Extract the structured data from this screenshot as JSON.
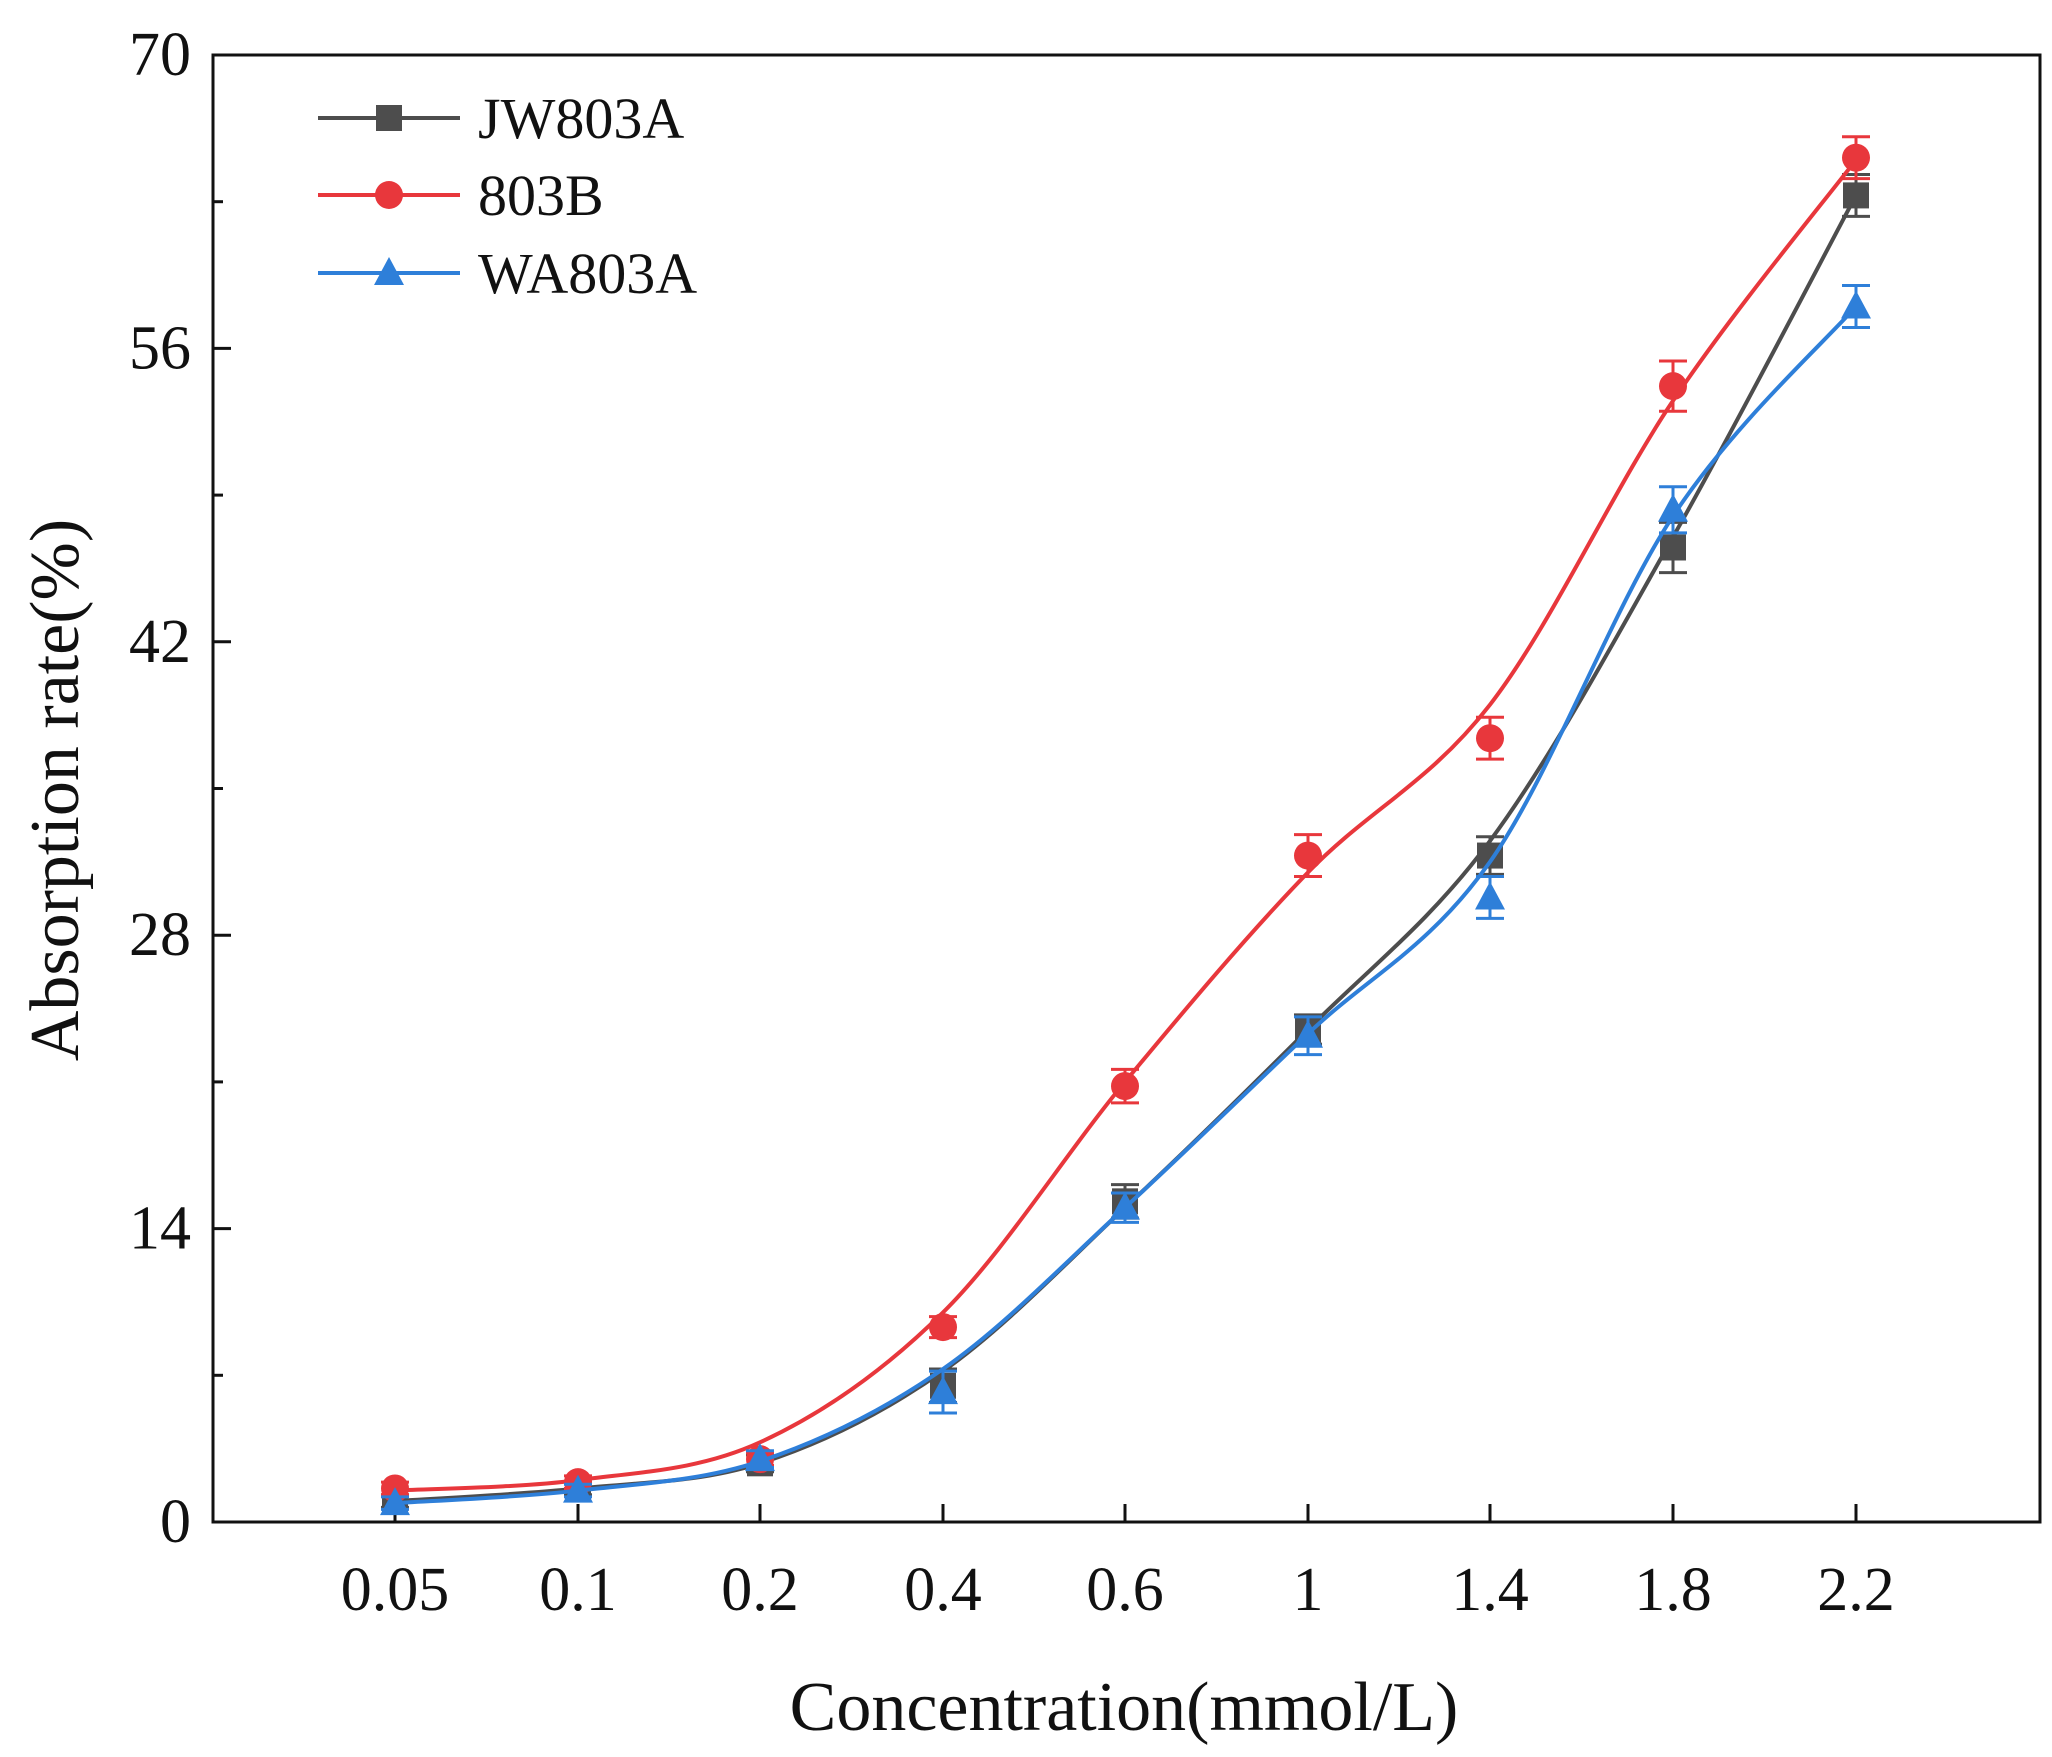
{
  "chart_data": {
    "type": "line",
    "title": "",
    "xlabel": "Concentration(mmol/L)",
    "ylabel": "Absorption rate(%)",
    "categories": [
      "0.05",
      "0.1",
      "0.2",
      "0.4",
      "0.6",
      "1",
      "1.4",
      "1.8",
      "2.2"
    ],
    "ylim": [
      0,
      70
    ],
    "yticks": [
      "0",
      "14",
      "28",
      "42",
      "56",
      "70"
    ],
    "grid": false,
    "legend_position": "top-left",
    "series": [
      {
        "name": "JW803A",
        "color": "#4d4d4d",
        "marker": "square",
        "values": [
          1.0,
          1.6,
          2.8,
          6.5,
          15.3,
          23.5,
          31.8,
          46.5,
          63.3
        ],
        "errors": [
          0.3,
          0.3,
          0.4,
          0.8,
          0.8,
          0.7,
          0.9,
          1.2,
          1.0
        ],
        "fit": [
          1.0,
          1.6,
          2.8,
          7.2,
          15.0,
          23.5,
          32.5,
          47.0,
          63.3
        ]
      },
      {
        "name": "803B",
        "color": "#e8373c",
        "marker": "circle",
        "values": [
          1.6,
          1.9,
          3.0,
          9.3,
          20.8,
          31.8,
          37.4,
          54.2,
          65.1
        ],
        "errors": [
          0.3,
          0.3,
          0.3,
          0.5,
          0.8,
          1.0,
          1.0,
          1.2,
          1.0
        ],
        "fit": [
          1.5,
          2.0,
          3.8,
          10.0,
          21.0,
          31.0,
          39.0,
          53.5,
          65.0
        ]
      },
      {
        "name": "WA803A",
        "color": "#2e7fd9",
        "marker": "triangle",
        "values": [
          0.9,
          1.5,
          3.0,
          6.2,
          15.0,
          23.2,
          29.8,
          48.3,
          58.0
        ],
        "errors": [
          0.3,
          0.3,
          0.4,
          1.0,
          0.7,
          0.9,
          1.0,
          1.1,
          1.0
        ],
        "fit": [
          0.9,
          1.5,
          2.9,
          7.3,
          15.0,
          23.3,
          31.5,
          48.0,
          58.0
        ]
      }
    ]
  }
}
